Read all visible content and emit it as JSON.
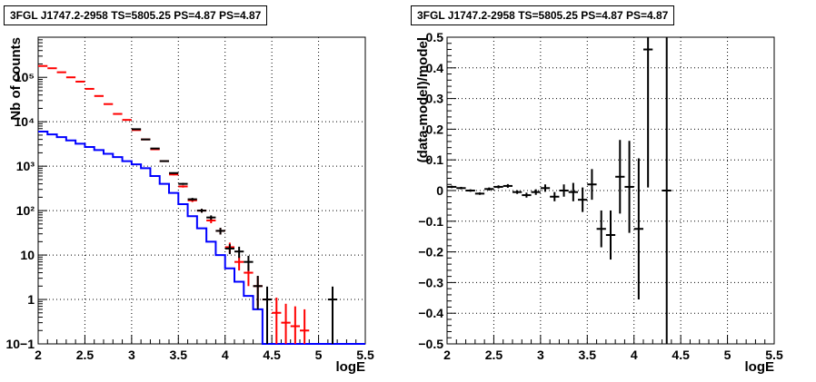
{
  "chart_data": [
    {
      "type": "line",
      "title": "3FGL J1747.2-2958 TS=5805.25 PS=4.87 PS=4.87",
      "xlabel": "logE",
      "ylabel": "Nb of counts",
      "xlim": [
        2,
        5.5
      ],
      "ylim": [
        0.1,
        800000
      ],
      "yscale": "log",
      "grid": true,
      "x_ticks": [
        "2",
        "2.5",
        "3",
        "3.5",
        "4",
        "4.5",
        "5",
        "5.5"
      ],
      "y_ticks": [
        "10−1",
        "1",
        "10",
        "10²",
        "10³",
        "10⁴",
        "10⁵"
      ],
      "series": [
        {
          "color": "#0000ff",
          "style": "step",
          "bin_edges": [
            2.0,
            2.1,
            2.2,
            2.3,
            2.4,
            2.5,
            2.6,
            2.7,
            2.8,
            2.9,
            3.0,
            3.1,
            3.2,
            3.3,
            3.4,
            3.5,
            3.6,
            3.7,
            3.8,
            3.9,
            4.0,
            4.1,
            4.2,
            4.3,
            4.4,
            4.5,
            4.6,
            4.7,
            4.8,
            4.9,
            5.0,
            5.1,
            5.2,
            5.3,
            5.4,
            5.5
          ],
          "values": [
            6000,
            5200,
            4500,
            3800,
            3200,
            2700,
            2300,
            1900,
            1600,
            1300,
            1100,
            900,
            600,
            400,
            250,
            140,
            75,
            40,
            20,
            10,
            5,
            2.5,
            1.2,
            0.6,
            0.1,
            0.1,
            0.1,
            0.1,
            0.1,
            0.1,
            0.1,
            0.1,
            0.1,
            0.1,
            0.1
          ]
        },
        {
          "color": "#ff0000",
          "style": "markers",
          "x": [
            2.05,
            2.15,
            2.25,
            2.35,
            2.45,
            2.55,
            2.65,
            2.75,
            2.85,
            2.95,
            3.05,
            3.15,
            3.25,
            3.35,
            3.45,
            3.55,
            3.65,
            3.75,
            3.85,
            3.95,
            4.05,
            4.15,
            4.25,
            4.35,
            4.45,
            4.55,
            4.65,
            4.75,
            4.85
          ],
          "y": [
            180000,
            160000,
            130000,
            100000,
            80000,
            55000,
            38000,
            25000,
            15000,
            11000,
            6500,
            4000,
            2400,
            1300,
            650,
            350,
            170,
            100,
            60,
            35,
            15,
            7,
            4,
            2,
            1,
            0.5,
            0.3,
            0.25,
            0.2
          ],
          "err": [
            400,
            400,
            360,
            320,
            280,
            230,
            190,
            160,
            120,
            100,
            80,
            60,
            50,
            40,
            26,
            20,
            14,
            10,
            8,
            6,
            4,
            2.5,
            2,
            1.3,
            0.9,
            0.6,
            0.5,
            0.45,
            0.4
          ]
        },
        {
          "color": "#000000",
          "style": "markers",
          "x": [
            3.05,
            3.15,
            3.25,
            3.35,
            3.45,
            3.55,
            3.65,
            3.75,
            3.85,
            3.95,
            4.05,
            4.15,
            4.25,
            4.35,
            4.45,
            5.15
          ],
          "y": [
            6800,
            4000,
            2500,
            1300,
            700,
            400,
            180,
            100,
            70,
            35,
            14,
            12,
            7,
            2,
            1,
            1
          ],
          "err": [
            80,
            60,
            50,
            36,
            26,
            20,
            13,
            10,
            8,
            6,
            3.5,
            3.4,
            2.6,
            1.4,
            0.95,
            0.95
          ]
        }
      ]
    },
    {
      "type": "scatter",
      "title": "3FGL J1747.2-2958 TS=5805.25 PS=4.87 PS=4.87",
      "xlabel": "logE",
      "ylabel": "(data-model)/model",
      "xlim": [
        2,
        5.5
      ],
      "ylim": [
        -0.5,
        0.5
      ],
      "grid": true,
      "x_ticks": [
        "2",
        "2.5",
        "3",
        "3.5",
        "4",
        "4.5",
        "5",
        "5.5"
      ],
      "y_ticks": [
        "−0.5",
        "−0.4",
        "−0.3",
        "−0.2",
        "−0.1",
        "0",
        "0.1",
        "0.2",
        "0.3",
        "0.4",
        "0.5"
      ],
      "series": [
        {
          "color": "#000000",
          "x": [
            2.05,
            2.15,
            2.25,
            2.35,
            2.45,
            2.55,
            2.65,
            2.75,
            2.85,
            2.95,
            3.05,
            3.15,
            3.25,
            3.35,
            3.45,
            3.55,
            3.65,
            3.75,
            3.85,
            3.95,
            4.05,
            4.15,
            4.35
          ],
          "y": [
            0.012,
            0.008,
            0.0,
            -0.01,
            0.005,
            0.012,
            0.015,
            -0.005,
            -0.015,
            -0.005,
            0.008,
            -0.02,
            0.0,
            -0.005,
            -0.03,
            0.02,
            -0.125,
            -0.145,
            0.045,
            0.012,
            -0.125,
            0.46,
            0.0
          ],
          "err": [
            0.004,
            0.004,
            0.004,
            0.004,
            0.005,
            0.005,
            0.006,
            0.006,
            0.008,
            0.009,
            0.012,
            0.015,
            0.02,
            0.03,
            0.04,
            0.05,
            0.06,
            0.08,
            0.12,
            0.15,
            0.23,
            0.45,
            0.6
          ]
        }
      ]
    }
  ]
}
